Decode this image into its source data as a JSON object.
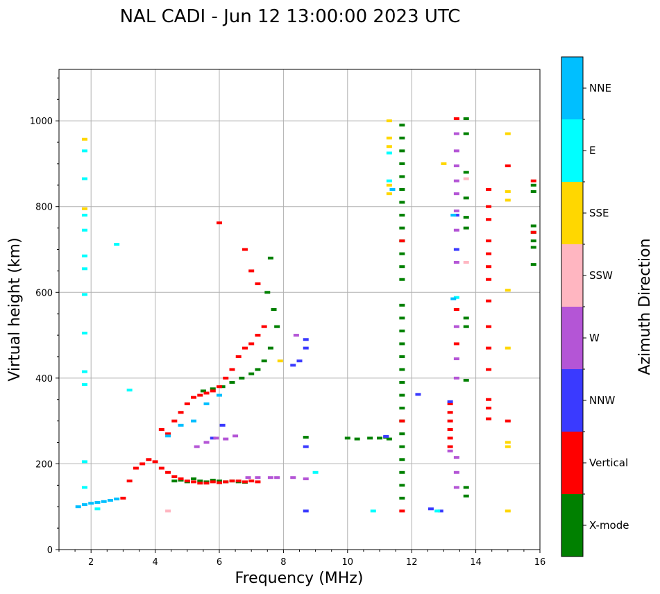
{
  "chart_data": {
    "type": "scatter",
    "title": "NAL CADI - Jun 12 13:00:00 2023 UTC",
    "xlabel": "Frequency (MHz)",
    "ylabel": "Virtual height (km)",
    "xlim": [
      1,
      16
    ],
    "ylim": [
      0,
      1120
    ],
    "xticks": [
      2,
      4,
      6,
      8,
      10,
      12,
      14,
      16
    ],
    "yticks": [
      0,
      200,
      400,
      600,
      800,
      1000
    ],
    "grid": true,
    "colorbar": {
      "label": "Azimuth Direction",
      "categories": [
        "X-mode",
        "Vertical",
        "NNW",
        "W",
        "SSW",
        "SSE",
        "E",
        "NNE"
      ],
      "colors": [
        "#008000",
        "#ff0000",
        "#3a3aff",
        "#b455d6",
        "#ffb6c1",
        "#ffd700",
        "#00ffff",
        "#00bfff"
      ]
    },
    "series": [
      {
        "name": "X-mode",
        "points": [
          [
            4.6,
            160
          ],
          [
            4.8,
            162
          ],
          [
            5.0,
            158
          ],
          [
            5.2,
            165
          ],
          [
            5.4,
            160
          ],
          [
            5.6,
            158
          ],
          [
            5.8,
            162
          ],
          [
            6.0,
            160
          ],
          [
            6.2,
            158
          ],
          [
            6.4,
            160
          ],
          [
            6.6,
            158
          ],
          [
            6.8,
            157
          ],
          [
            5.5,
            370
          ],
          [
            5.8,
            375
          ],
          [
            6.1,
            380
          ],
          [
            6.4,
            390
          ],
          [
            6.7,
            400
          ],
          [
            7.0,
            410
          ],
          [
            7.2,
            420
          ],
          [
            7.4,
            440
          ],
          [
            7.6,
            470
          ],
          [
            7.8,
            520
          ],
          [
            7.7,
            560
          ],
          [
            7.5,
            600
          ],
          [
            7.6,
            680
          ],
          [
            8.7,
            262
          ],
          [
            10.0,
            260
          ],
          [
            10.3,
            258
          ],
          [
            10.7,
            260
          ],
          [
            11.0,
            260
          ],
          [
            11.3,
            258
          ],
          [
            11.2,
            262
          ],
          [
            11.7,
            990
          ],
          [
            11.7,
            960
          ],
          [
            11.7,
            930
          ],
          [
            11.7,
            900
          ],
          [
            11.7,
            870
          ],
          [
            11.7,
            840
          ],
          [
            11.7,
            810
          ],
          [
            11.7,
            780
          ],
          [
            11.7,
            750
          ],
          [
            11.7,
            720
          ],
          [
            11.7,
            690
          ],
          [
            11.7,
            660
          ],
          [
            11.7,
            630
          ],
          [
            11.7,
            570
          ],
          [
            11.7,
            540
          ],
          [
            11.7,
            510
          ],
          [
            11.7,
            480
          ],
          [
            11.7,
            450
          ],
          [
            11.7,
            420
          ],
          [
            11.7,
            390
          ],
          [
            11.7,
            360
          ],
          [
            11.7,
            330
          ],
          [
            11.7,
            300
          ],
          [
            11.7,
            270
          ],
          [
            11.7,
            240
          ],
          [
            11.7,
            210
          ],
          [
            11.7,
            180
          ],
          [
            11.7,
            150
          ],
          [
            11.7,
            120
          ],
          [
            13.7,
            1005
          ],
          [
            13.7,
            970
          ],
          [
            13.7,
            880
          ],
          [
            13.7,
            820
          ],
          [
            13.7,
            775
          ],
          [
            13.7,
            750
          ],
          [
            13.7,
            540
          ],
          [
            13.7,
            520
          ],
          [
            13.7,
            395
          ],
          [
            13.7,
            145
          ],
          [
            13.7,
            125
          ],
          [
            15.8,
            850
          ],
          [
            15.8,
            835
          ],
          [
            15.8,
            755
          ],
          [
            15.8,
            740
          ],
          [
            15.8,
            720
          ],
          [
            15.8,
            705
          ],
          [
            15.8,
            665
          ]
        ]
      },
      {
        "name": "Vertical",
        "points": [
          [
            3.6,
            200
          ],
          [
            3.8,
            210
          ],
          [
            4.0,
            205
          ],
          [
            4.2,
            190
          ],
          [
            4.4,
            180
          ],
          [
            4.6,
            170
          ],
          [
            4.8,
            165
          ],
          [
            5.0,
            160
          ],
          [
            5.2,
            158
          ],
          [
            5.4,
            155
          ],
          [
            5.6,
            155
          ],
          [
            5.8,
            158
          ],
          [
            6.0,
            156
          ],
          [
            6.2,
            158
          ],
          [
            6.4,
            160
          ],
          [
            6.6,
            160
          ],
          [
            6.8,
            158
          ],
          [
            7.0,
            160
          ],
          [
            7.2,
            158
          ],
          [
            4.2,
            280
          ],
          [
            4.4,
            270
          ],
          [
            4.6,
            300
          ],
          [
            4.8,
            320
          ],
          [
            5.0,
            340
          ],
          [
            5.2,
            355
          ],
          [
            5.4,
            360
          ],
          [
            5.6,
            365
          ],
          [
            5.8,
            370
          ],
          [
            6.0,
            380
          ],
          [
            6.2,
            400
          ],
          [
            6.4,
            420
          ],
          [
            6.6,
            450
          ],
          [
            6.8,
            470
          ],
          [
            7.0,
            480
          ],
          [
            7.2,
            500
          ],
          [
            7.4,
            520
          ],
          [
            3.0,
            120
          ],
          [
            3.2,
            160
          ],
          [
            3.4,
            190
          ],
          [
            6.0,
            762
          ],
          [
            6.8,
            700
          ],
          [
            7.0,
            650
          ],
          [
            7.2,
            620
          ],
          [
            11.7,
            90
          ],
          [
            11.7,
            300
          ],
          [
            11.7,
            720
          ],
          [
            13.2,
            340
          ],
          [
            13.2,
            320
          ],
          [
            13.2,
            300
          ],
          [
            13.2,
            280
          ],
          [
            13.2,
            260
          ],
          [
            13.2,
            240
          ],
          [
            13.4,
            1005
          ],
          [
            13.4,
            560
          ],
          [
            13.4,
            480
          ],
          [
            14.4,
            840
          ],
          [
            14.4,
            800
          ],
          [
            14.4,
            770
          ],
          [
            14.4,
            720
          ],
          [
            14.4,
            690
          ],
          [
            14.4,
            660
          ],
          [
            14.4,
            630
          ],
          [
            14.4,
            580
          ],
          [
            14.4,
            520
          ],
          [
            14.4,
            470
          ],
          [
            14.4,
            420
          ],
          [
            14.4,
            350
          ],
          [
            14.4,
            330
          ],
          [
            14.4,
            305
          ],
          [
            15.0,
            895
          ],
          [
            15.0,
            300
          ],
          [
            15.8,
            860
          ],
          [
            15.8,
            740
          ]
        ]
      },
      {
        "name": "NNW",
        "points": [
          [
            5.8,
            260
          ],
          [
            6.1,
            290
          ],
          [
            8.3,
            430
          ],
          [
            8.5,
            440
          ],
          [
            8.7,
            490
          ],
          [
            8.7,
            470
          ],
          [
            8.7,
            240
          ],
          [
            8.7,
            90
          ],
          [
            13.4,
            700
          ],
          [
            13.4,
            780
          ],
          [
            12.2,
            362
          ],
          [
            12.6,
            95
          ],
          [
            12.9,
            90
          ],
          [
            13.2,
            345
          ],
          [
            11.2,
            264
          ]
        ]
      },
      {
        "name": "W",
        "points": [
          [
            5.3,
            240
          ],
          [
            5.6,
            250
          ],
          [
            5.9,
            260
          ],
          [
            6.2,
            258
          ],
          [
            6.5,
            265
          ],
          [
            6.9,
            168
          ],
          [
            7.2,
            168
          ],
          [
            7.6,
            168
          ],
          [
            7.8,
            168
          ],
          [
            8.3,
            168
          ],
          [
            8.7,
            165
          ],
          [
            8.4,
            500
          ],
          [
            13.4,
            970
          ],
          [
            13.4,
            930
          ],
          [
            13.4,
            895
          ],
          [
            13.4,
            860
          ],
          [
            13.4,
            830
          ],
          [
            13.4,
            790
          ],
          [
            13.4,
            745
          ],
          [
            13.4,
            670
          ],
          [
            13.4,
            520
          ],
          [
            13.4,
            445
          ],
          [
            13.4,
            400
          ],
          [
            13.4,
            215
          ],
          [
            13.4,
            180
          ],
          [
            13.4,
            145
          ],
          [
            13.2,
            230
          ]
        ]
      },
      {
        "name": "SSW",
        "points": [
          [
            13.7,
            865
          ],
          [
            13.7,
            670
          ],
          [
            4.4,
            90
          ]
        ]
      },
      {
        "name": "SSE",
        "points": [
          [
            11.3,
            1000
          ],
          [
            11.3,
            960
          ],
          [
            11.3,
            940
          ],
          [
            11.3,
            850
          ],
          [
            11.3,
            830
          ],
          [
            13.0,
            900
          ],
          [
            15.0,
            970
          ],
          [
            15.0,
            835
          ],
          [
            15.0,
            815
          ],
          [
            15.0,
            605
          ],
          [
            15.0,
            470
          ],
          [
            15.0,
            250
          ],
          [
            15.0,
            240
          ],
          [
            15.0,
            90
          ],
          [
            7.9,
            440
          ],
          [
            1.8,
            957
          ],
          [
            1.8,
            795
          ]
        ]
      },
      {
        "name": "E",
        "points": [
          [
            1.8,
            930
          ],
          [
            1.8,
            865
          ],
          [
            1.8,
            780
          ],
          [
            1.8,
            745
          ],
          [
            1.8,
            685
          ],
          [
            1.8,
            655
          ],
          [
            1.8,
            595
          ],
          [
            1.8,
            505
          ],
          [
            1.8,
            415
          ],
          [
            1.8,
            385
          ],
          [
            1.8,
            205
          ],
          [
            1.8,
            145
          ],
          [
            2.2,
            95
          ],
          [
            3.2,
            372
          ],
          [
            2.8,
            712
          ],
          [
            11.3,
            925
          ],
          [
            11.3,
            860
          ],
          [
            12.8,
            90
          ],
          [
            9.0,
            180
          ],
          [
            10.8,
            90
          ],
          [
            13.4,
            588
          ]
        ]
      },
      {
        "name": "NNE",
        "points": [
          [
            1.6,
            100
          ],
          [
            1.8,
            105
          ],
          [
            2.0,
            108
          ],
          [
            2.2,
            110
          ],
          [
            2.4,
            112
          ],
          [
            2.6,
            115
          ],
          [
            2.8,
            118
          ],
          [
            4.4,
            265
          ],
          [
            4.8,
            290
          ],
          [
            5.2,
            300
          ],
          [
            5.6,
            340
          ],
          [
            6.0,
            360
          ],
          [
            13.3,
            780
          ],
          [
            13.3,
            585
          ],
          [
            11.4,
            840
          ]
        ]
      }
    ]
  }
}
